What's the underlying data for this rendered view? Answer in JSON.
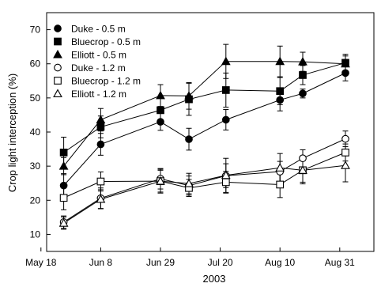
{
  "chart_data": {
    "type": "line",
    "xlabel": "2003",
    "ylabel": "Crop light interception (%)",
    "xlim": [
      140,
      255
    ],
    "ylim": [
      5,
      75
    ],
    "x_ticks": [
      {
        "value": 138,
        "label": "May 18"
      },
      {
        "value": 159,
        "label": "Jun 8"
      },
      {
        "value": 180,
        "label": "Jun 29"
      },
      {
        "value": 201,
        "label": "Jul 20"
      },
      {
        "value": 222,
        "label": "Aug 10"
      },
      {
        "value": 243,
        "label": "Aug 31"
      }
    ],
    "y_ticks": [
      10,
      20,
      30,
      40,
      50,
      60,
      70
    ],
    "grid": false,
    "legend_position": "top-left",
    "series": [
      {
        "name": "Duke - 0.5 m",
        "marker": "circle",
        "filled": true,
        "points": [
          {
            "x": 146,
            "y": 24.3,
            "err": 3.5
          },
          {
            "x": 159,
            "y": 36.4,
            "err": 3.2
          },
          {
            "x": 180,
            "y": 43.0,
            "err": 2.5
          },
          {
            "x": 190,
            "y": 37.9,
            "err": 3.2
          },
          {
            "x": 203,
            "y": 43.6,
            "err": 3.0
          },
          {
            "x": 222,
            "y": 49.4,
            "err": 3.2
          },
          {
            "x": 230,
            "y": 51.3,
            "err": 1.3
          },
          {
            "x": 245,
            "y": 57.3,
            "err": 2.3
          }
        ]
      },
      {
        "name": "Bluecrop - 0.5 m",
        "marker": "square",
        "filled": true,
        "points": [
          {
            "x": 146,
            "y": 34.0,
            "err": 4.5
          },
          {
            "x": 159,
            "y": 41.5,
            "err": 3.2
          },
          {
            "x": 180,
            "y": 46.4,
            "err": 3.5
          },
          {
            "x": 190,
            "y": 49.6,
            "err": 4.7
          },
          {
            "x": 203,
            "y": 52.3,
            "err": 5.0
          },
          {
            "x": 222,
            "y": 52.0,
            "err": 4.0
          },
          {
            "x": 230,
            "y": 56.7,
            "err": 2.8
          },
          {
            "x": 245,
            "y": 60.3,
            "err": 2.5
          }
        ]
      },
      {
        "name": "Elliott - 0.5 m",
        "marker": "triangle",
        "filled": true,
        "points": [
          {
            "x": 146,
            "y": 30.0,
            "err": 2.5
          },
          {
            "x": 159,
            "y": 43.6,
            "err": 3.3
          },
          {
            "x": 180,
            "y": 50.7,
            "err": 3.2
          },
          {
            "x": 190,
            "y": 50.6,
            "err": 3.9
          },
          {
            "x": 203,
            "y": 60.7,
            "err": 5.0
          },
          {
            "x": 222,
            "y": 60.7,
            "err": 4.5
          },
          {
            "x": 230,
            "y": 60.6,
            "err": 2.8
          },
          {
            "x": 245,
            "y": 60.0,
            "err": 2.3
          }
        ]
      },
      {
        "name": "Duke - 1.2 m",
        "marker": "circle",
        "filled": false,
        "points": [
          {
            "x": 146,
            "y": 13.6,
            "err": 1.8
          },
          {
            "x": 159,
            "y": 20.6,
            "err": 3.0
          },
          {
            "x": 180,
            "y": 26.3,
            "err": 3.0
          },
          {
            "x": 190,
            "y": 24.3,
            "err": 2.8
          },
          {
            "x": 203,
            "y": 27.2,
            "err": 3.5
          },
          {
            "x": 222,
            "y": 28.4,
            "err": 3.0
          },
          {
            "x": 230,
            "y": 32.3,
            "err": 2.5
          },
          {
            "x": 245,
            "y": 38.0,
            "err": 2.3
          }
        ]
      },
      {
        "name": "Bluecrop - 1.2 m",
        "marker": "square",
        "filled": false,
        "points": [
          {
            "x": 146,
            "y": 20.7,
            "err": 3.5
          },
          {
            "x": 159,
            "y": 25.5,
            "err": 2.8
          },
          {
            "x": 180,
            "y": 25.6,
            "err": 3.2
          },
          {
            "x": 190,
            "y": 23.6,
            "err": 2.5
          },
          {
            "x": 203,
            "y": 25.3,
            "err": 3.2
          },
          {
            "x": 222,
            "y": 24.6,
            "err": 3.8
          },
          {
            "x": 230,
            "y": 28.8,
            "err": 3.5
          },
          {
            "x": 245,
            "y": 34.0,
            "err": 2.5
          }
        ]
      },
      {
        "name": "Elliott - 1.2 m",
        "marker": "triangle",
        "filled": false,
        "points": [
          {
            "x": 146,
            "y": 13.3,
            "err": 1.8
          },
          {
            "x": 159,
            "y": 20.3,
            "err": 2.8
          },
          {
            "x": 180,
            "y": 25.6,
            "err": 3.5
          },
          {
            "x": 190,
            "y": 24.9,
            "err": 3.0
          },
          {
            "x": 203,
            "y": 27.3,
            "err": 5.0
          },
          {
            "x": 222,
            "y": 29.5,
            "err": 4.2
          },
          {
            "x": 230,
            "y": 28.8,
            "err": 4.0
          },
          {
            "x": 245,
            "y": 30.2,
            "err": 4.8
          }
        ]
      }
    ]
  }
}
